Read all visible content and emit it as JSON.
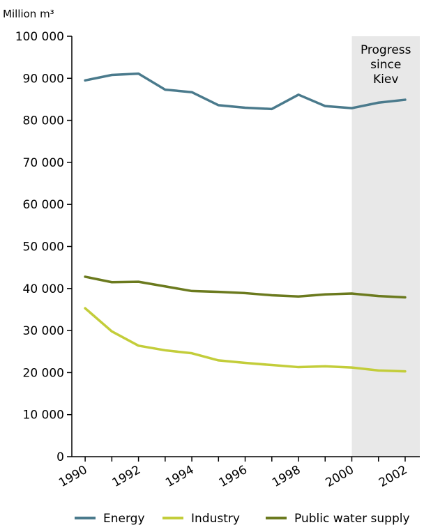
{
  "chart_data": {
    "type": "line",
    "unit_label": "Million m³",
    "x": [
      1990,
      1991,
      1992,
      1993,
      1994,
      1995,
      1996,
      1997,
      1998,
      1999,
      2000,
      2001,
      2002
    ],
    "x_tick_labels": [
      "1990",
      "1992",
      "1994",
      "1996",
      "1998",
      "2000",
      "2002"
    ],
    "y_tick_labels": [
      "0",
      "10 000",
      "20 000",
      "30 000",
      "40 000",
      "50 000",
      "60 000",
      "70 000",
      "80 000",
      "90 000",
      "100 000"
    ],
    "ylim": [
      0,
      100000
    ],
    "grid": false,
    "legend_position": "bottom",
    "highlight_band": {
      "from": 2000,
      "to": 2002.5,
      "label_lines": [
        "Progress",
        "since",
        "Kiev"
      ]
    },
    "series": [
      {
        "name": "Energy",
        "color": "#4a7a8c",
        "values": [
          89500,
          90800,
          91100,
          87300,
          86700,
          83600,
          83000,
          82700,
          86100,
          83400,
          82900,
          84200,
          84900
        ]
      },
      {
        "name": "Industry",
        "color": "#c3cd3a",
        "values": [
          35300,
          29800,
          26400,
          25300,
          24600,
          22900,
          22300,
          21800,
          21300,
          21500,
          21200,
          20500,
          20300
        ]
      },
      {
        "name": "Public water supply",
        "color": "#6b7a1e",
        "values": [
          42800,
          41500,
          41600,
          40500,
          39400,
          39200,
          38900,
          38400,
          38100,
          38600,
          38800,
          38200,
          37900
        ]
      }
    ]
  }
}
